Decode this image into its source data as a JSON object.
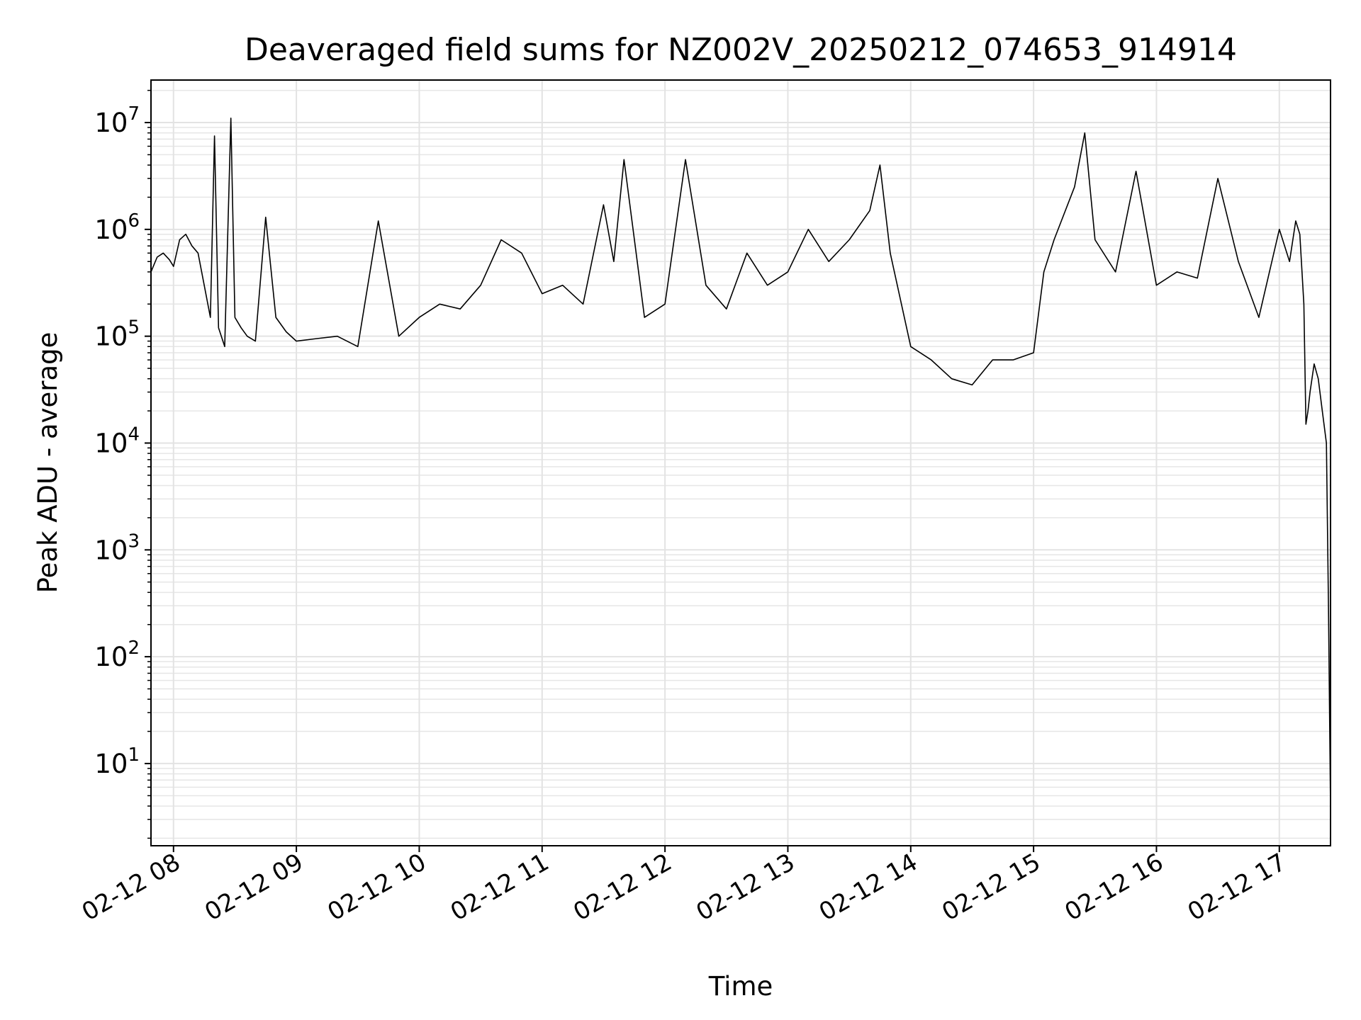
{
  "chart_data": {
    "type": "line",
    "title": "Deaveraged field sums for NZ002V_20250212_074653_914914",
    "xlabel": "Time",
    "ylabel": "Peak ADU - average",
    "yscale": "log",
    "grid": true,
    "xlim": [
      "02-12 07:49",
      "02-12 17:25"
    ],
    "ylim": [
      1.7,
      25000000
    ],
    "x_ticks": [
      "02-12 08",
      "02-12 09",
      "02-12 10",
      "02-12 11",
      "02-12 12",
      "02-12 13",
      "02-12 14",
      "02-12 15",
      "02-12 16",
      "02-12 17"
    ],
    "y_ticks": [
      {
        "base": "10",
        "exp": "1"
      },
      {
        "base": "10",
        "exp": "2"
      },
      {
        "base": "10",
        "exp": "3"
      },
      {
        "base": "10",
        "exp": "4"
      },
      {
        "base": "10",
        "exp": "5"
      },
      {
        "base": "10",
        "exp": "6"
      },
      {
        "base": "10",
        "exp": "7"
      }
    ],
    "line_color": "#000000",
    "series": [
      {
        "x": [
          "02-12 07:49",
          "02-12 07:52",
          "02-12 07:55",
          "02-12 07:58",
          "02-12 08:00",
          "02-12 08:03",
          "02-12 08:06",
          "02-12 08:09",
          "02-12 08:12",
          "02-12 08:15",
          "02-12 08:18",
          "02-12 08:20",
          "02-12 08:22",
          "02-12 08:25",
          "02-12 08:28",
          "02-12 08:30",
          "02-12 08:33",
          "02-12 08:36",
          "02-12 08:40",
          "02-12 08:45",
          "02-12 08:50",
          "02-12 08:55",
          "02-12 09:00",
          "02-12 09:10",
          "02-12 09:20",
          "02-12 09:30",
          "02-12 09:40",
          "02-12 09:50",
          "02-12 10:00",
          "02-12 10:10",
          "02-12 10:20",
          "02-12 10:30",
          "02-12 10:40",
          "02-12 10:50",
          "02-12 11:00",
          "02-12 11:10",
          "02-12 11:20",
          "02-12 11:30",
          "02-12 11:35",
          "02-12 11:40",
          "02-12 11:50",
          "02-12 12:00",
          "02-12 12:10",
          "02-12 12:20",
          "02-12 12:30",
          "02-12 12:40",
          "02-12 12:50",
          "02-12 13:00",
          "02-12 13:10",
          "02-12 13:20",
          "02-12 13:30",
          "02-12 13:40",
          "02-12 13:45",
          "02-12 13:50",
          "02-12 14:00",
          "02-12 14:10",
          "02-12 14:20",
          "02-12 14:30",
          "02-12 14:40",
          "02-12 14:50",
          "02-12 15:00",
          "02-12 15:05",
          "02-12 15:10",
          "02-12 15:20",
          "02-12 15:25",
          "02-12 15:30",
          "02-12 15:40",
          "02-12 15:50",
          "02-12 16:00",
          "02-12 16:10",
          "02-12 16:20",
          "02-12 16:30",
          "02-12 16:40",
          "02-12 16:50",
          "02-12 17:00",
          "02-12 17:05",
          "02-12 17:08",
          "02-12 17:10",
          "02-12 17:12",
          "02-12 17:13",
          "02-12 17:14",
          "02-12 17:15",
          "02-12 17:17",
          "02-12 17:19",
          "02-12 17:21",
          "02-12 17:23",
          "02-12 17:24",
          "02-12 17:25"
        ],
        "y": [
          400000,
          550000,
          600000,
          520000,
          450000,
          800000,
          900000,
          700000,
          600000,
          300000,
          150000,
          7500000,
          120000,
          80000,
          11000000,
          150000,
          120000,
          100000,
          90000,
          1300000,
          150000,
          110000,
          90000,
          95000,
          100000,
          80000,
          1200000,
          100000,
          150000,
          200000,
          180000,
          300000,
          800000,
          600000,
          250000,
          300000,
          200000,
          1700000,
          500000,
          4500000,
          150000,
          200000,
          4500000,
          300000,
          180000,
          600000,
          300000,
          400000,
          1000000,
          500000,
          800000,
          1500000,
          4000000,
          600000,
          80000,
          60000,
          40000,
          35000,
          60000,
          60000,
          70000,
          400000,
          800000,
          2500000,
          8000000,
          800000,
          400000,
          3500000,
          300000,
          400000,
          350000,
          3000000,
          500000,
          150000,
          1000000,
          500000,
          1200000,
          900000,
          200000,
          15000,
          20000,
          30000,
          55000,
          40000,
          20000,
          10000,
          300,
          3.8
        ]
      }
    ]
  }
}
